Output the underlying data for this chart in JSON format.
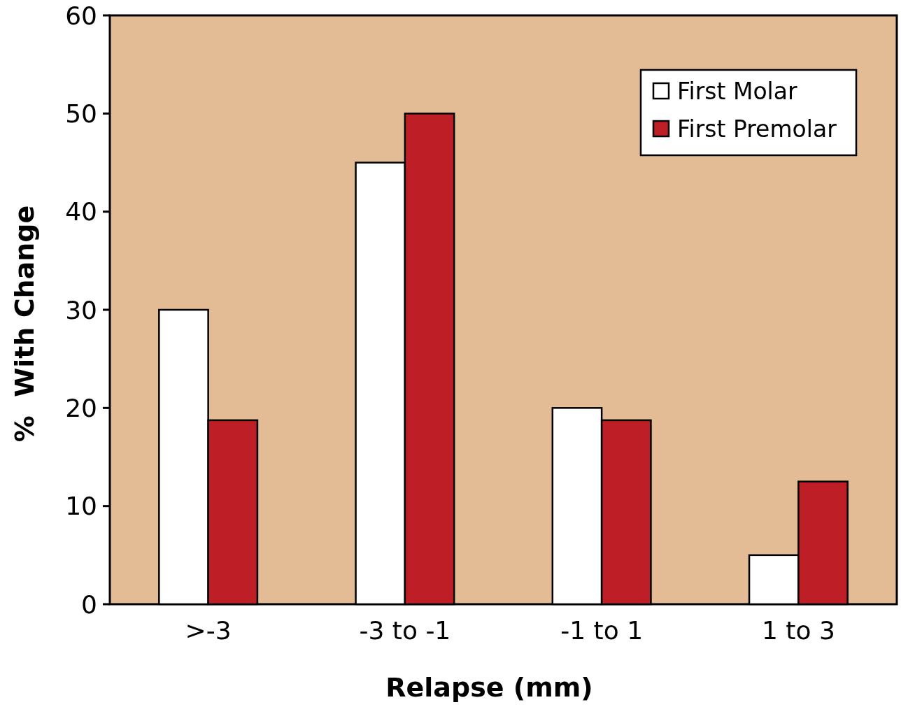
{
  "chart_data": {
    "type": "bar",
    "xlabel": "Relapse (mm)",
    "ylabel": "%  With Change",
    "categories": [
      ">-3",
      "-3 to -1",
      "-1 to 1",
      "1 to 3"
    ],
    "series": [
      {
        "name": "First Molar",
        "color": "#ffffff",
        "values": [
          30,
          45,
          20,
          5
        ]
      },
      {
        "name": "First Premolar",
        "color": "#be1e25",
        "values": [
          18.75,
          50,
          18.75,
          12.5
        ]
      }
    ],
    "ylim": [
      0,
      60
    ],
    "yticks": [
      0,
      10,
      20,
      30,
      40,
      50,
      60
    ],
    "grid": false,
    "legend": "top right"
  }
}
